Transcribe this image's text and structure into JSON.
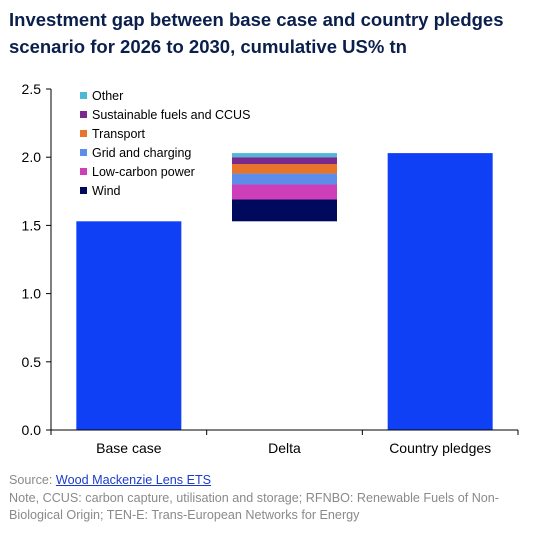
{
  "title": "Investment gap between base case and country pledges scenario for 2026 to 2030, cumulative US% tn",
  "footer": {
    "source_prefix": "Source: ",
    "source_link": "Wood Mackenzie Lens ETS",
    "note": "Note, CCUS: carbon capture, utilisation and storage; RFNBO: Renewable Fuels of Non-Biological Origin; TEN-E: Trans-European Networks for Energy"
  },
  "chart_data": {
    "type": "bar",
    "title": "Investment gap between base case and country pledges scenario for 2026 to 2030, cumulative US% tn",
    "categories": [
      "Base case",
      "Delta",
      "Country pledges"
    ],
    "ylim": [
      0,
      2.5
    ],
    "yticks": [
      "0.0",
      "0.5",
      "1.0",
      "1.5",
      "2.0",
      "2.5"
    ],
    "bar_color": "#1040f5",
    "totals": [
      {
        "category": "Base case",
        "value": 1.53
      },
      {
        "category": "Country pledges",
        "value": 2.03
      }
    ],
    "delta": {
      "category": "Delta",
      "base": 1.53,
      "segments": [
        {
          "name": "Wind",
          "value": 0.16,
          "color": "#000a5c"
        },
        {
          "name": "Low-carbon power",
          "value": 0.11,
          "color": "#cc3fb8"
        },
        {
          "name": "Grid and charging",
          "value": 0.08,
          "color": "#5c8de8"
        },
        {
          "name": "Transport",
          "value": 0.07,
          "color": "#e8732a"
        },
        {
          "name": "Sustainable fuels and CCUS",
          "value": 0.05,
          "color": "#7a2a8c"
        },
        {
          "name": "Other",
          "value": 0.03,
          "color": "#4fb8d8"
        }
      ]
    },
    "legend_order": [
      "Other",
      "Sustainable fuels and CCUS",
      "Transport",
      "Grid and charging",
      "Low-carbon power",
      "Wind"
    ],
    "legend_position": "top-left",
    "grid": false
  }
}
